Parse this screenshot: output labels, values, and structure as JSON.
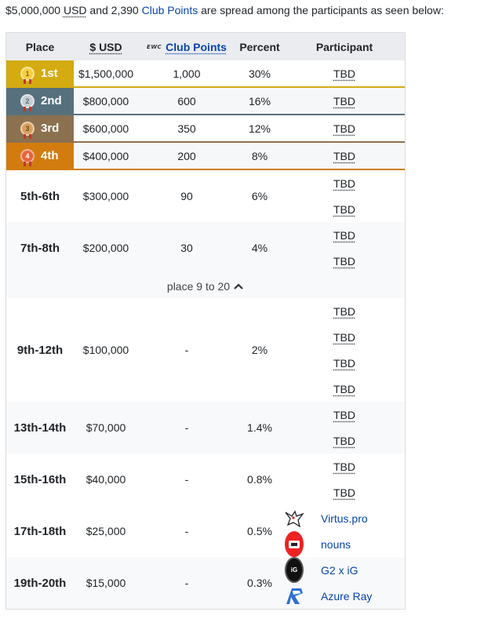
{
  "intro": {
    "prize": "$5,000,000",
    "usd": "USD",
    "and": "and 2,390",
    "club_points": "Club Points",
    "rest": "are spread among the participants as seen below:"
  },
  "header": {
    "place": "Place",
    "usd_prefix": "$",
    "usd": "USD",
    "club_logo": "EWC",
    "club_points": "Club Points",
    "percent": "Percent",
    "participant": "Participant"
  },
  "medal_rows": [
    {
      "place": "1st",
      "medal": "1",
      "usd": "$1,500,000",
      "points": "1,000",
      "percent": "30%",
      "participant": "TBD"
    },
    {
      "place": "2nd",
      "medal": "2",
      "usd": "$800,000",
      "points": "600",
      "percent": "16%",
      "participant": "TBD"
    },
    {
      "place": "3rd",
      "medal": "3",
      "usd": "$600,000",
      "points": "350",
      "percent": "12%",
      "participant": "TBD"
    },
    {
      "place": "4th",
      "medal": "4",
      "usd": "$400,000",
      "points": "200",
      "percent": "8%",
      "participant": "TBD"
    }
  ],
  "rows": [
    {
      "place": "5th-6th",
      "usd": "$300,000",
      "points": "90",
      "percent": "6%",
      "participants": [
        "TBD",
        "TBD"
      ]
    },
    {
      "place": "7th-8th",
      "usd": "$200,000",
      "points": "30",
      "percent": "4%",
      "participants": [
        "TBD",
        "TBD"
      ]
    }
  ],
  "toggle": {
    "label": "place 9 to 20",
    "icon": "chevron-up-icon"
  },
  "rows_more": [
    {
      "place": "9th-12th",
      "usd": "$100,000",
      "points": "-",
      "percent": "2%",
      "participants": [
        "TBD",
        "TBD",
        "TBD",
        "TBD"
      ]
    },
    {
      "place": "13th-14th",
      "usd": "$70,000",
      "points": "-",
      "percent": "1.4%",
      "participants": [
        "TBD",
        "TBD"
      ]
    },
    {
      "place": "15th-16th",
      "usd": "$40,000",
      "points": "-",
      "percent": "0.8%",
      "participants": [
        "TBD",
        "TBD"
      ]
    }
  ],
  "team_rows": [
    {
      "place": "17th-18th",
      "usd": "$25,000",
      "points": "-",
      "percent": "0.5%",
      "teams": [
        {
          "name": "Virtus.pro",
          "icon": "virtus-pro-logo-icon"
        },
        {
          "name": "nouns",
          "icon": "nouns-logo-icon"
        }
      ]
    },
    {
      "place": "19th-20th",
      "usd": "$15,000",
      "points": "-",
      "percent": "0.3%",
      "teams": [
        {
          "name": "G2 x iG",
          "icon": "g2-ig-logo-icon"
        },
        {
          "name": "Azure Ray",
          "icon": "azure-ray-logo-icon"
        }
      ]
    }
  ]
}
